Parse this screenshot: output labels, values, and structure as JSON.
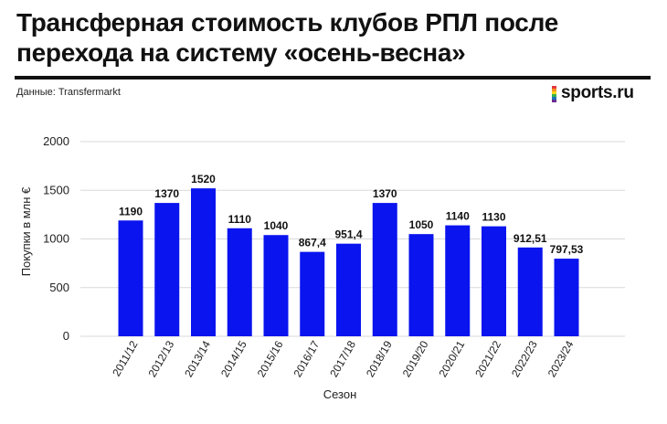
{
  "header": {
    "title": "Трансферная стоимость клубов РПЛ после перехода на систему «осень-весна»",
    "source": "Данные: Transfermarkt",
    "logo": "sports.ru"
  },
  "colors": {
    "bar": "#0a14ee",
    "grid": "#d9d9d9",
    "rule": "#111111"
  },
  "chart_data": {
    "type": "bar",
    "title": "Трансферная стоимость клубов РПЛ после перехода на систему «осень-весна»",
    "xlabel": "Сезон",
    "ylabel": "Покупки в млн €",
    "ylim": [
      0,
      2000
    ],
    "yticks": [
      0,
      500,
      1000,
      1500,
      2000
    ],
    "grid": true,
    "categories": [
      "2011/12",
      "2012/13",
      "2013/14",
      "2014/15",
      "2015/16",
      "2016/17",
      "2017/18",
      "2018/19",
      "2019/20",
      "2020/21",
      "2021/22",
      "2022/23",
      "2023/24"
    ],
    "values": [
      1190,
      1370,
      1520,
      1110,
      1040,
      867.4,
      951.4,
      1370,
      1050,
      1140,
      1130,
      912.51,
      797.53
    ],
    "labels": [
      "1190",
      "1370",
      "1520",
      "1110",
      "1040",
      "867,4",
      "951,4",
      "1370",
      "1050",
      "1140",
      "1130",
      "912,51",
      "797,53"
    ]
  }
}
